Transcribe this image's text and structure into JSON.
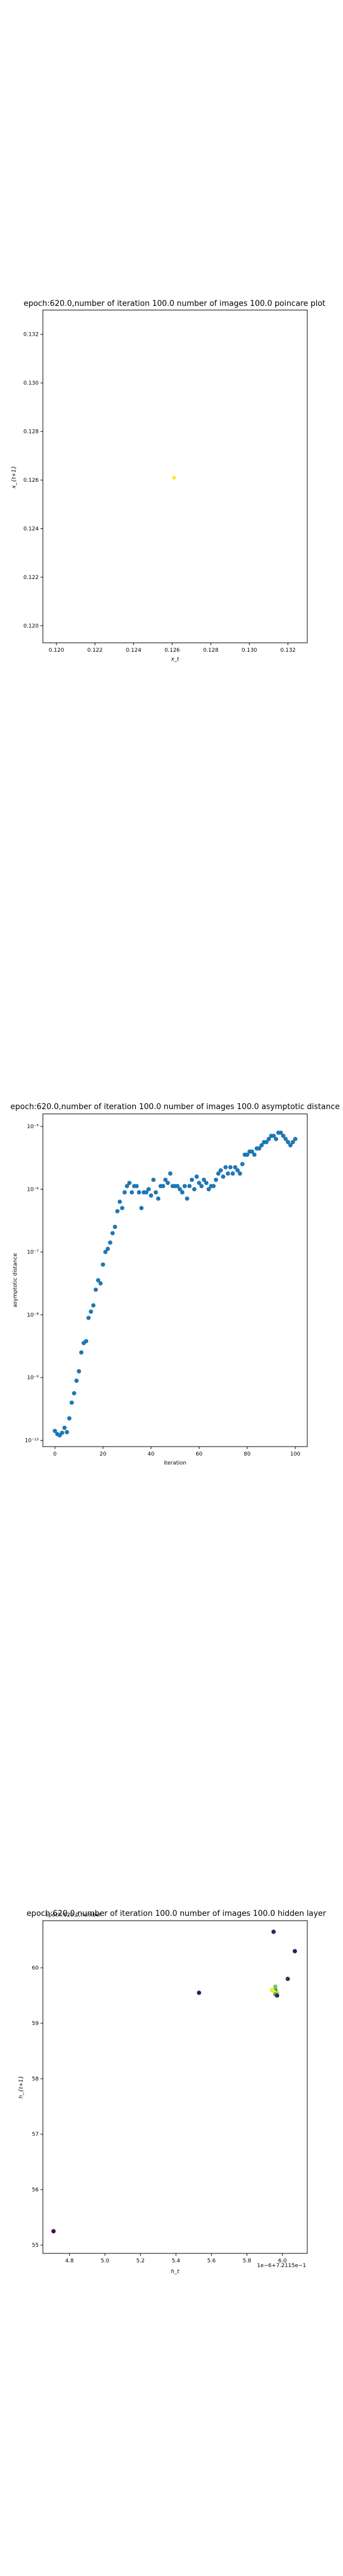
{
  "chart_data": [
    {
      "type": "scatter",
      "title": "epoch:620.0,number of iteration 100.0 number of images 100.0 poincare plot",
      "xlabel": "x_t",
      "ylabel": "x_{t+1}",
      "xlim": [
        0.1193,
        0.133
      ],
      "ylim": [
        0.1193,
        0.133
      ],
      "xticks": [
        "0.120",
        "0.122",
        "0.124",
        "0.126",
        "0.128",
        "0.130",
        "0.132"
      ],
      "xtick_values": [
        0.12,
        0.122,
        0.124,
        0.126,
        0.128,
        0.13,
        0.132
      ],
      "yticks": [
        "0.120",
        "0.122",
        "0.124",
        "0.126",
        "0.128",
        "0.130",
        "0.132"
      ],
      "ytick_values": [
        0.12,
        0.122,
        0.124,
        0.126,
        0.128,
        0.13,
        0.132
      ],
      "points": [
        {
          "x": 0.1261,
          "y": 0.1261
        }
      ],
      "colors": {
        "point": "#fde725",
        "axes": "#000000"
      },
      "grid": false
    },
    {
      "type": "scatter",
      "title": "epoch:620.0,number of iteration 100.0  number of images 100.0 asymptotic distance",
      "xlabel": "iteration",
      "ylabel": "asymptotic distance",
      "xlim": [
        -5,
        105
      ],
      "ylim": [
        -10.1,
        -4.8
      ],
      "yscale": "log",
      "xticks": [
        "0",
        "20",
        "40",
        "60",
        "80",
        "100"
      ],
      "xtick_values": [
        0,
        20,
        40,
        60,
        80,
        100
      ],
      "yticks": [
        "10⁻¹⁰",
        "10⁻⁹",
        "10⁻⁸",
        "10⁻⁷",
        "10⁻⁶",
        "10⁻⁵"
      ],
      "ytick_values": [
        -10,
        -9,
        -8,
        -7,
        -6,
        -5
      ],
      "points_log10": [
        [
          0,
          -9.85
        ],
        [
          1,
          -9.9
        ],
        [
          2,
          -9.92
        ],
        [
          3,
          -9.88
        ],
        [
          4,
          -9.8
        ],
        [
          5,
          -9.87
        ],
        [
          6,
          -9.65
        ],
        [
          7,
          -9.4
        ],
        [
          8,
          -9.25
        ],
        [
          9,
          -9.05
        ],
        [
          10,
          -8.9
        ],
        [
          11,
          -8.6
        ],
        [
          12,
          -8.45
        ],
        [
          13,
          -8.42
        ],
        [
          14,
          -8.05
        ],
        [
          15,
          -7.95
        ],
        [
          16,
          -7.85
        ],
        [
          17,
          -7.6
        ],
        [
          18,
          -7.45
        ],
        [
          19,
          -7.5
        ],
        [
          20,
          -7.2
        ],
        [
          21,
          -7.0
        ],
        [
          22,
          -6.95
        ],
        [
          23,
          -6.85
        ],
        [
          24,
          -6.7
        ],
        [
          25,
          -6.6
        ],
        [
          26,
          -6.35
        ],
        [
          27,
          -6.2
        ],
        [
          28,
          -6.3
        ],
        [
          29,
          -6.05
        ],
        [
          30,
          -5.95
        ],
        [
          31,
          -5.9
        ],
        [
          32,
          -6.05
        ],
        [
          33,
          -5.95
        ],
        [
          34,
          -5.95
        ],
        [
          35,
          -6.05
        ],
        [
          36,
          -6.3
        ],
        [
          37,
          -6.05
        ],
        [
          38,
          -6.05
        ],
        [
          39,
          -6.0
        ],
        [
          40,
          -6.1
        ],
        [
          41,
          -5.85
        ],
        [
          42,
          -6.05
        ],
        [
          43,
          -6.15
        ],
        [
          44,
          -5.95
        ],
        [
          45,
          -5.95
        ],
        [
          46,
          -5.85
        ],
        [
          47,
          -5.9
        ],
        [
          48,
          -5.75
        ],
        [
          49,
          -5.95
        ],
        [
          50,
          -5.95
        ],
        [
          51,
          -5.95
        ],
        [
          52,
          -6.0
        ],
        [
          53,
          -6.05
        ],
        [
          54,
          -5.95
        ],
        [
          55,
          -6.15
        ],
        [
          56,
          -5.95
        ],
        [
          57,
          -5.85
        ],
        [
          58,
          -6.0
        ],
        [
          59,
          -5.8
        ],
        [
          60,
          -5.9
        ],
        [
          61,
          -5.95
        ],
        [
          62,
          -5.85
        ],
        [
          63,
          -5.9
        ],
        [
          64,
          -6.0
        ],
        [
          65,
          -5.95
        ],
        [
          66,
          -5.95
        ],
        [
          67,
          -5.85
        ],
        [
          68,
          -5.75
        ],
        [
          69,
          -5.7
        ],
        [
          70,
          -5.8
        ],
        [
          71,
          -5.65
        ],
        [
          72,
          -5.75
        ],
        [
          73,
          -5.65
        ],
        [
          74,
          -5.75
        ],
        [
          75,
          -5.65
        ],
        [
          76,
          -5.7
        ],
        [
          77,
          -5.75
        ],
        [
          78,
          -5.6
        ],
        [
          79,
          -5.45
        ],
        [
          80,
          -5.45
        ],
        [
          81,
          -5.4
        ],
        [
          82,
          -5.4
        ],
        [
          83,
          -5.45
        ],
        [
          84,
          -5.35
        ],
        [
          85,
          -5.35
        ],
        [
          86,
          -5.3
        ],
        [
          87,
          -5.25
        ],
        [
          88,
          -5.25
        ],
        [
          89,
          -5.2
        ],
        [
          90,
          -5.15
        ],
        [
          91,
          -5.15
        ],
        [
          92,
          -5.2
        ],
        [
          93,
          -5.1
        ],
        [
          94,
          -5.1
        ],
        [
          95,
          -5.15
        ],
        [
          96,
          -5.2
        ],
        [
          97,
          -5.25
        ],
        [
          98,
          -5.3
        ],
        [
          99,
          -5.25
        ],
        [
          100,
          -5.2
        ]
      ],
      "colors": {
        "point": "#1f77b4",
        "axes": "#000000"
      },
      "grid": false
    },
    {
      "type": "scatter",
      "title": "epoch:620.0,number of iteration 100.0  number of images 100.0 hidden layer",
      "xlabel": "h_t",
      "ylabel": "h_{t+1}",
      "offset_text": "1e−6+7.2115e−1",
      "overlay_label": "epoch:620.0,number",
      "xlim": [
        4.65,
        6.14
      ],
      "ylim": [
        54.85,
        60.85
      ],
      "xticks": [
        "4.8",
        "5.0",
        "5.2",
        "5.4",
        "5.6",
        "5.8",
        "6.0"
      ],
      "xtick_values": [
        4.8,
        5.0,
        5.2,
        5.4,
        5.6,
        5.8,
        6.0
      ],
      "yticks": [
        "55",
        "56",
        "57",
        "58",
        "59",
        "60"
      ],
      "ytick_values": [
        55,
        56,
        57,
        58,
        59,
        60
      ],
      "points": [
        {
          "x": 4.71,
          "y": 55.25,
          "color": "#440154"
        },
        {
          "x": 5.53,
          "y": 59.55,
          "color": "#2c1e4e"
        },
        {
          "x": 5.95,
          "y": 60.65,
          "color": "#30205a"
        },
        {
          "x": 6.07,
          "y": 60.3,
          "color": "#2c1f58"
        },
        {
          "x": 6.03,
          "y": 59.8,
          "color": "#3a2a62"
        },
        {
          "x": 5.96,
          "y": 59.6,
          "color": "#26828e"
        },
        {
          "x": 5.95,
          "y": 59.58,
          "color": "#fde725"
        },
        {
          "x": 5.97,
          "y": 59.55,
          "color": "#b5de2b"
        },
        {
          "x": 5.96,
          "y": 59.52,
          "color": "#35b779"
        },
        {
          "x": 5.97,
          "y": 59.5,
          "color": "#3a2162"
        },
        {
          "x": 5.94,
          "y": 59.6,
          "color": "#f3e640"
        },
        {
          "x": 5.96,
          "y": 59.66,
          "color": "#6ece58"
        }
      ],
      "colors": {
        "axes": "#000000"
      },
      "grid": false
    }
  ]
}
